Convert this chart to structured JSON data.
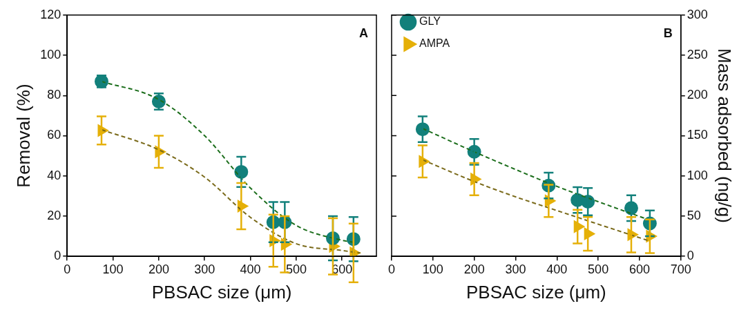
{
  "chart_data": [
    {
      "type": "scatter",
      "xlabel": "PBSAC size (μm)",
      "ylabel": "Removal (%)",
      "annotations": [
        "A"
      ],
      "xlim": [
        0,
        675
      ],
      "xticks": [
        0,
        100,
        200,
        300,
        400,
        500,
        600
      ],
      "ylim": [
        0,
        120
      ],
      "yticks": [
        0,
        20,
        40,
        60,
        80,
        100,
        120
      ],
      "grid": false,
      "legend": false,
      "series": [
        {
          "color": "#12807b",
          "marker": "circle",
          "x": [
            75,
            200,
            380,
            450,
            475,
            580,
            625
          ],
          "values": [
            87,
            77,
            42,
            17,
            17,
            9,
            8.6
          ],
          "errors": [
            3,
            4,
            7.5,
            10,
            10,
            11,
            11
          ]
        },
        {
          "color": "#e5b008",
          "marker": "triangle",
          "x": [
            75,
            200,
            380,
            450,
            475,
            580,
            625
          ],
          "values": [
            62.6,
            52,
            25,
            7.8,
            6,
            5,
            1.7
          ],
          "errors": [
            7,
            8,
            11.5,
            13,
            14,
            14,
            14.6
          ]
        },
        {
          "type": "line",
          "color": "#1c6e1c",
          "line_style": "dashed",
          "marker": "none",
          "x": [
            75,
            200,
            300,
            400,
            500,
            600,
            625
          ],
          "values": [
            87,
            78,
            60,
            34,
            15.4,
            8,
            7
          ]
        },
        {
          "type": "line",
          "color": "#7a6a1a",
          "line_style": "dashed",
          "marker": "none",
          "x": [
            75,
            200,
            300,
            400,
            500,
            600,
            640
          ],
          "values": [
            63,
            53,
            39.4,
            19.4,
            6.3,
            2.9,
            1.7
          ]
        }
      ]
    },
    {
      "type": "scatter",
      "xlabel": "PBSAC size (μm)",
      "y2label": "Mass adsorbed (ng/g)",
      "annotations": [
        "B"
      ],
      "xlim": [
        0,
        700
      ],
      "xticks": [
        0,
        100,
        200,
        300,
        400,
        500,
        600,
        700
      ],
      "y2lim": [
        0,
        300
      ],
      "y2ticks": [
        0,
        50,
        100,
        150,
        200,
        250,
        300
      ],
      "grid": false,
      "legend": "top left",
      "series": [
        {
          "name": "GLY",
          "color": "#12807b",
          "marker": "circle",
          "axis": "y2",
          "x": [
            75,
            200,
            380,
            450,
            475,
            580,
            625
          ],
          "values": [
            158,
            130,
            88,
            70,
            68,
            60,
            41
          ],
          "errors": [
            16,
            16,
            16,
            16,
            17,
            16,
            16
          ]
        },
        {
          "name": "AMPA",
          "color": "#e5b008",
          "marker": "triangle",
          "axis": "y2",
          "x": [
            75,
            200,
            380,
            450,
            475,
            580,
            625
          ],
          "values": [
            118,
            96,
            69,
            37,
            28,
            27,
            25
          ],
          "errors": [
            20,
            20,
            20,
            21,
            21,
            22,
            21
          ]
        },
        {
          "type": "line",
          "color": "#1c6e1c",
          "line_style": "dashed",
          "marker": "none",
          "axis": "y2",
          "x": [
            75,
            200,
            300,
            400,
            500,
            625
          ],
          "values": [
            159,
            130,
            108,
            87,
            68,
            45
          ]
        },
        {
          "type": "line",
          "color": "#7a6a1a",
          "line_style": "dashed",
          "marker": "none",
          "axis": "y2",
          "x": [
            75,
            200,
            300,
            400,
            500,
            625
          ],
          "values": [
            120,
            93,
            74,
            57,
            40,
            19
          ]
        }
      ]
    }
  ]
}
